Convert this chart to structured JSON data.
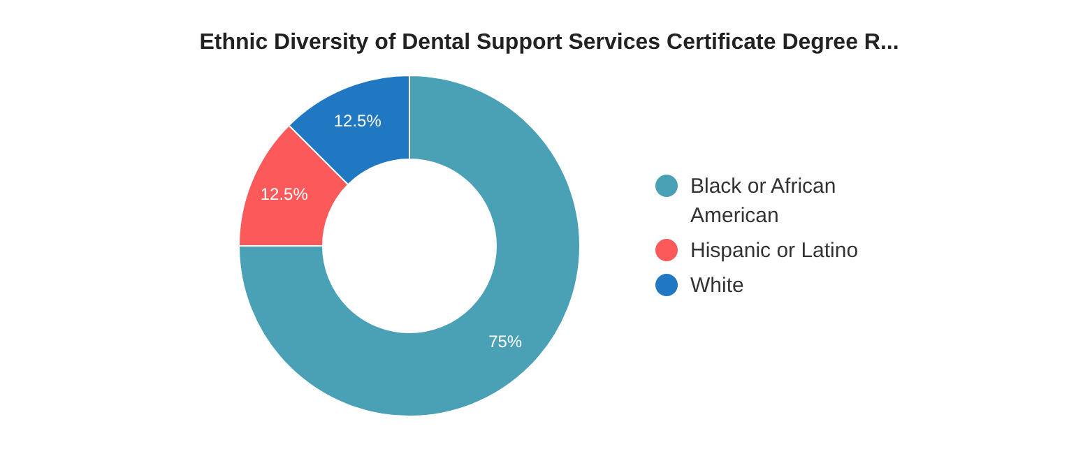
{
  "chart_data": {
    "type": "donut",
    "title": "Ethnic Diversity of Dental Support Services Certificate Degree R...",
    "categories": [
      "Black or African American",
      "Hispanic or Latino",
      "White"
    ],
    "values": [
      75,
      12.5,
      12.5
    ],
    "value_labels": [
      "75%",
      "12.5%",
      "12.5%"
    ],
    "colors": [
      "#4aa0b5",
      "#fc5a5a",
      "#1f78c1"
    ],
    "legend": "right"
  }
}
